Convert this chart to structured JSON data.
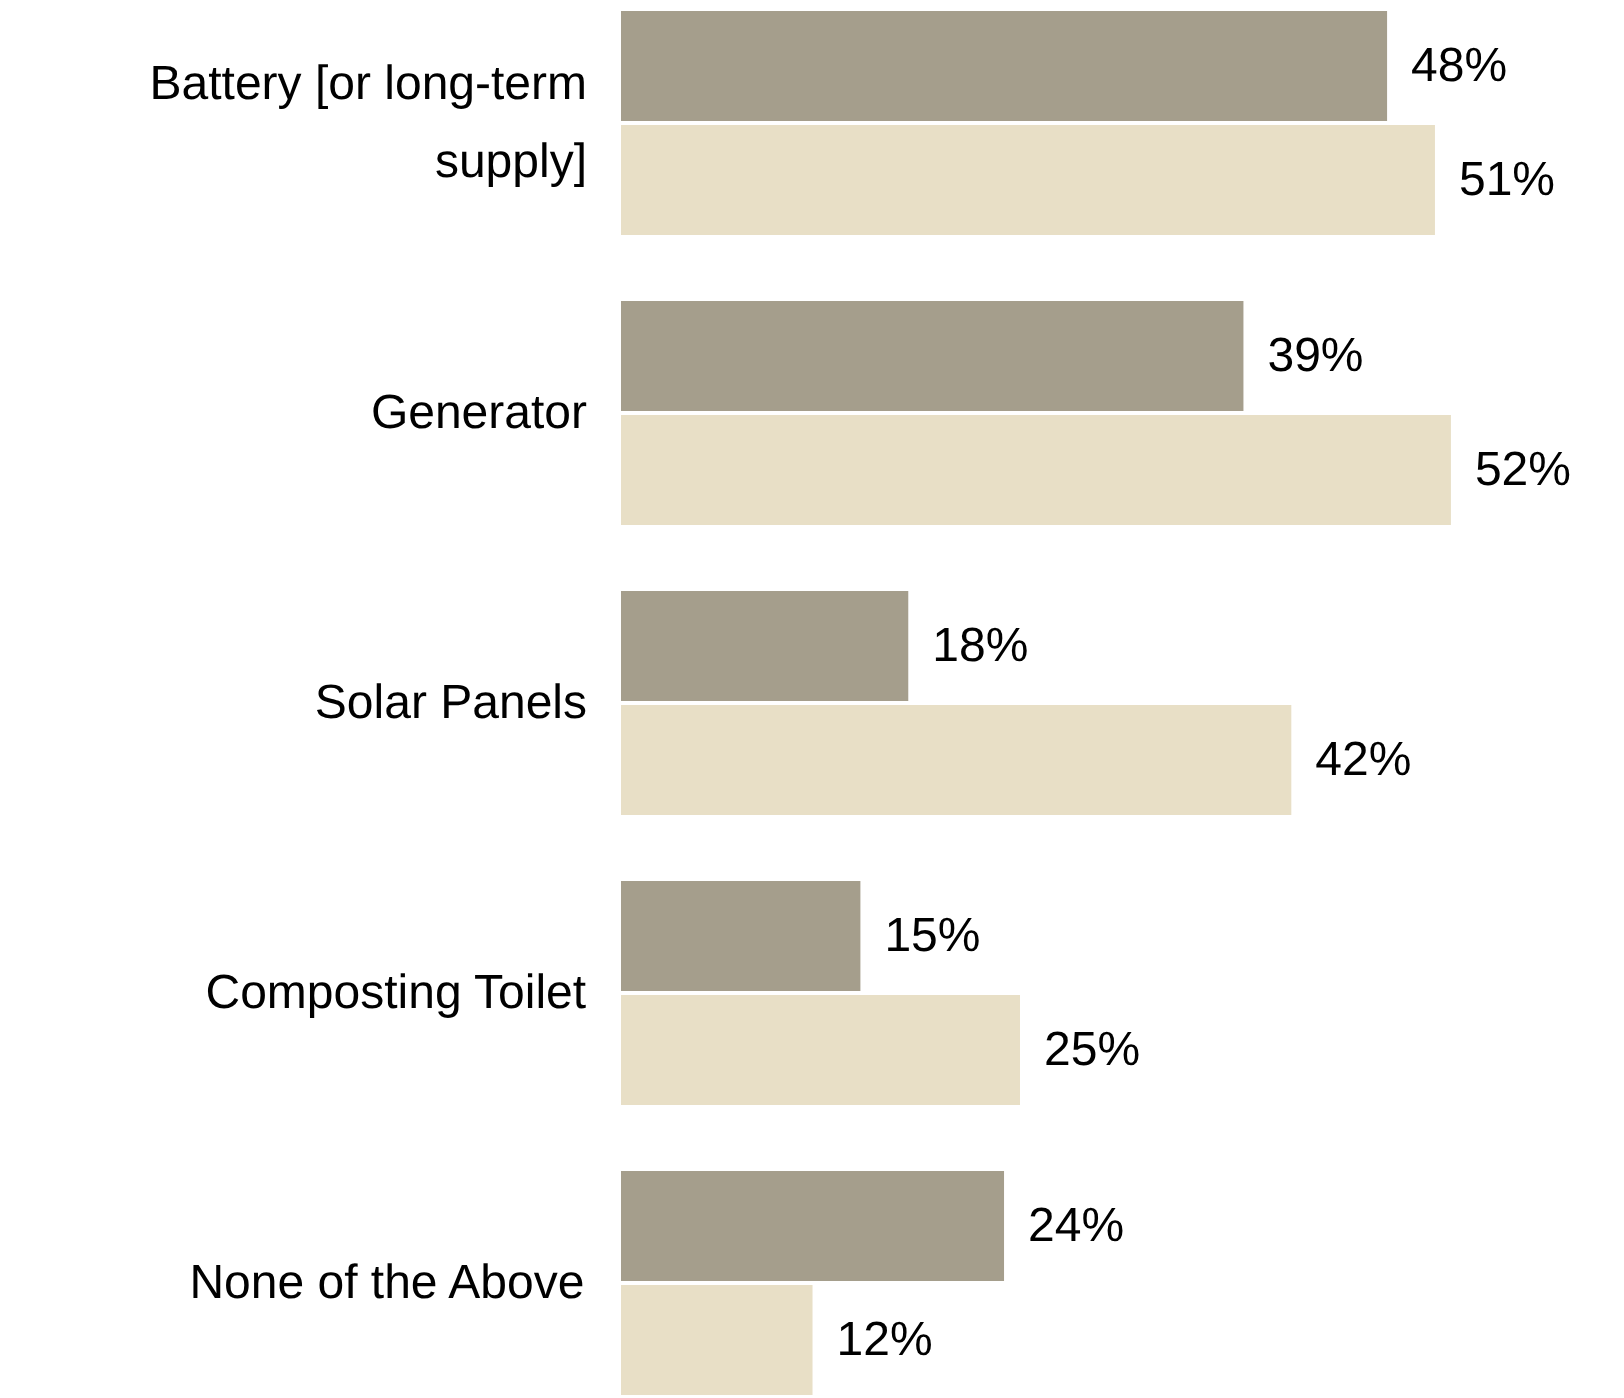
{
  "chart_data": {
    "type": "bar",
    "orientation": "horizontal",
    "categories": [
      "Battery [or long-term supply]",
      "Generator",
      "Solar Panels",
      "Composting Toilet",
      "None of the Above"
    ],
    "series": [
      {
        "color": "#a59e8c",
        "values": [
          48,
          39,
          18,
          15,
          24
        ],
        "value_labels": [
          "48%",
          "39%",
          "18%",
          "15%",
          "24%"
        ]
      },
      {
        "color": "#e8dfc6",
        "values": [
          51,
          52,
          42,
          25,
          12
        ],
        "value_labels": [
          "51%",
          "52%",
          "42%",
          "25%",
          "12%"
        ]
      }
    ]
  }
}
